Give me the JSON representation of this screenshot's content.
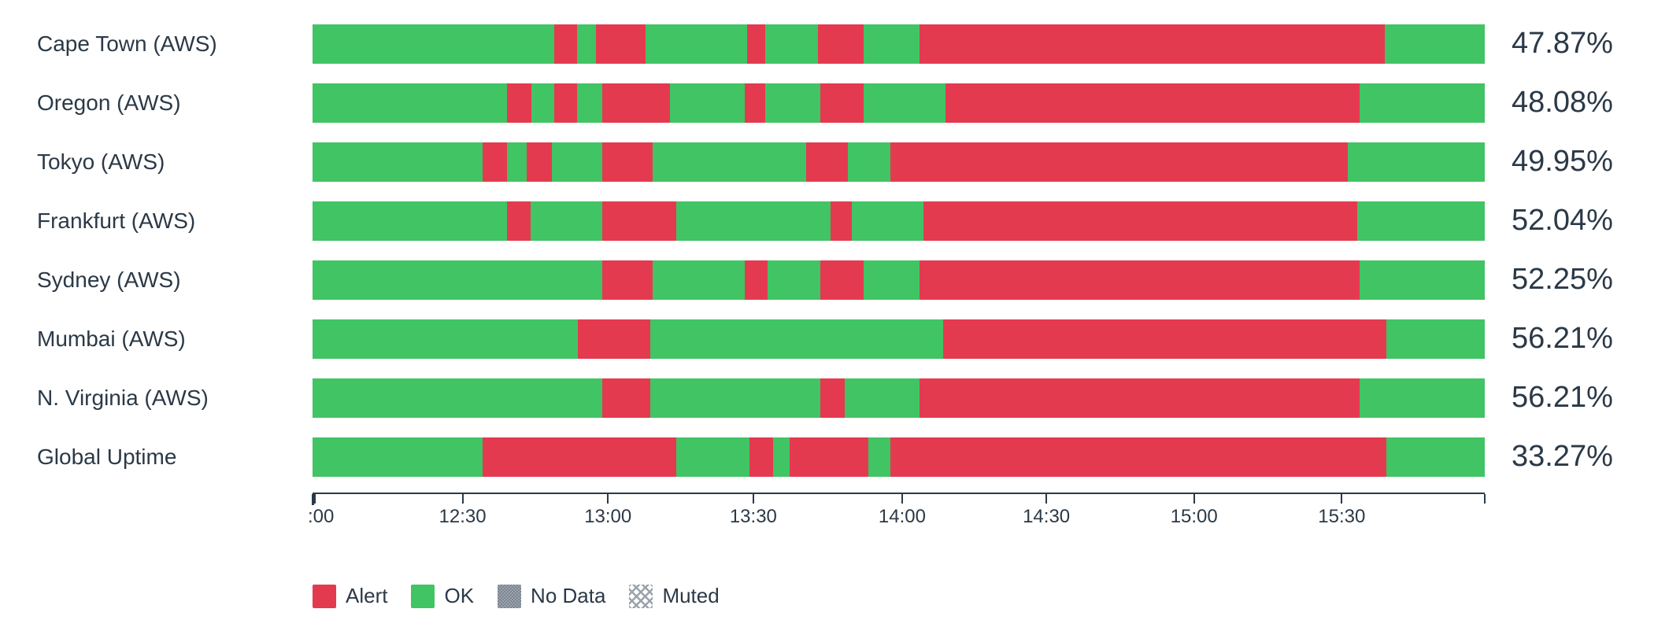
{
  "colors": {
    "alert": "#e43a50",
    "ok": "#41c464",
    "no_data": "#848e99",
    "muted_hatch": "#9aa2ab",
    "text": "#2b3947",
    "axis": "#2b3947",
    "background": "#ffffff"
  },
  "chart_data": {
    "type": "status-timeline (horizontal stacked status bars, one per monitor)",
    "x_axis": {
      "range_start": "12:00",
      "range_end": "16:00",
      "start_tick": true,
      "end_tick": true,
      "grid": false,
      "ticks": [
        {
          "label": ":00",
          "pct": 0.2,
          "align": "left"
        },
        {
          "label": "12:30",
          "pct": 12.8,
          "align": "center"
        },
        {
          "label": "13:00",
          "pct": 25.2,
          "align": "center"
        },
        {
          "label": "13:30",
          "pct": 37.6,
          "align": "center"
        },
        {
          "label": "14:00",
          "pct": 50.3,
          "align": "center"
        },
        {
          "label": "14:30",
          "pct": 62.6,
          "align": "center"
        },
        {
          "label": "15:00",
          "pct": 75.2,
          "align": "center"
        },
        {
          "label": "15:30",
          "pct": 87.8,
          "align": "center"
        }
      ]
    },
    "rows": [
      {
        "label": "Cape Town (AWS)",
        "uptime": "47.87%",
        "segments": [
          {
            "status": "ok",
            "pct": 20.6
          },
          {
            "status": "alert",
            "pct": 2.0
          },
          {
            "status": "ok",
            "pct": 1.6
          },
          {
            "status": "alert",
            "pct": 4.2
          },
          {
            "status": "ok",
            "pct": 8.7
          },
          {
            "status": "alert",
            "pct": 1.5
          },
          {
            "status": "ok",
            "pct": 4.5
          },
          {
            "status": "alert",
            "pct": 3.9
          },
          {
            "status": "ok",
            "pct": 4.8
          },
          {
            "status": "alert",
            "pct": 39.7
          },
          {
            "status": "ok",
            "pct": 8.5
          }
        ]
      },
      {
        "label": "Oregon (AWS)",
        "uptime": "48.08%",
        "segments": [
          {
            "status": "ok",
            "pct": 16.6
          },
          {
            "status": "alert",
            "pct": 2.1
          },
          {
            "status": "ok",
            "pct": 1.9
          },
          {
            "status": "alert",
            "pct": 2.0
          },
          {
            "status": "ok",
            "pct": 2.1
          },
          {
            "status": "alert",
            "pct": 5.8
          },
          {
            "status": "ok",
            "pct": 6.4
          },
          {
            "status": "alert",
            "pct": 1.7
          },
          {
            "status": "ok",
            "pct": 4.7
          },
          {
            "status": "alert",
            "pct": 3.7
          },
          {
            "status": "ok",
            "pct": 7.0
          },
          {
            "status": "alert",
            "pct": 35.3
          },
          {
            "status": "ok",
            "pct": 10.7
          }
        ]
      },
      {
        "label": "Tokyo (AWS)",
        "uptime": "49.95%",
        "segments": [
          {
            "status": "ok",
            "pct": 14.5
          },
          {
            "status": "alert",
            "pct": 2.1
          },
          {
            "status": "ok",
            "pct": 1.7
          },
          {
            "status": "alert",
            "pct": 2.1
          },
          {
            "status": "ok",
            "pct": 4.3
          },
          {
            "status": "alert",
            "pct": 4.3
          },
          {
            "status": "ok",
            "pct": 13.1
          },
          {
            "status": "alert",
            "pct": 3.6
          },
          {
            "status": "ok",
            "pct": 3.6
          },
          {
            "status": "alert",
            "pct": 39.0
          },
          {
            "status": "ok",
            "pct": 11.7
          }
        ]
      },
      {
        "label": "Frankfurt (AWS)",
        "uptime": "52.04%",
        "segments": [
          {
            "status": "ok",
            "pct": 16.6
          },
          {
            "status": "alert",
            "pct": 2.0
          },
          {
            "status": "ok",
            "pct": 6.1
          },
          {
            "status": "alert",
            "pct": 6.3
          },
          {
            "status": "ok",
            "pct": 13.2
          },
          {
            "status": "alert",
            "pct": 1.8
          },
          {
            "status": "ok",
            "pct": 6.1
          },
          {
            "status": "alert",
            "pct": 37.0
          },
          {
            "status": "ok",
            "pct": 10.9
          }
        ]
      },
      {
        "label": "Sydney (AWS)",
        "uptime": "52.25%",
        "segments": [
          {
            "status": "ok",
            "pct": 24.7
          },
          {
            "status": "alert",
            "pct": 4.3
          },
          {
            "status": "ok",
            "pct": 7.9
          },
          {
            "status": "alert",
            "pct": 1.9
          },
          {
            "status": "ok",
            "pct": 4.5
          },
          {
            "status": "alert",
            "pct": 3.7
          },
          {
            "status": "ok",
            "pct": 4.8
          },
          {
            "status": "alert",
            "pct": 37.5
          },
          {
            "status": "ok",
            "pct": 10.7
          }
        ]
      },
      {
        "label": "Mumbai (AWS)",
        "uptime": "56.21%",
        "segments": [
          {
            "status": "ok",
            "pct": 22.6
          },
          {
            "status": "alert",
            "pct": 6.2
          },
          {
            "status": "ok",
            "pct": 25.0
          },
          {
            "status": "alert",
            "pct": 37.8
          },
          {
            "status": "ok",
            "pct": 8.4
          }
        ]
      },
      {
        "label": "N. Virginia (AWS)",
        "uptime": "56.21%",
        "segments": [
          {
            "status": "ok",
            "pct": 24.7
          },
          {
            "status": "alert",
            "pct": 4.1
          },
          {
            "status": "ok",
            "pct": 14.5
          },
          {
            "status": "alert",
            "pct": 2.1
          },
          {
            "status": "ok",
            "pct": 6.4
          },
          {
            "status": "alert",
            "pct": 37.5
          },
          {
            "status": "ok",
            "pct": 10.7
          }
        ]
      },
      {
        "label": "Global Uptime",
        "uptime": "33.27%",
        "segments": [
          {
            "status": "ok",
            "pct": 14.5
          },
          {
            "status": "alert",
            "pct": 16.5
          },
          {
            "status": "ok",
            "pct": 6.3
          },
          {
            "status": "alert",
            "pct": 2.0
          },
          {
            "status": "ok",
            "pct": 1.4
          },
          {
            "status": "alert",
            "pct": 6.7
          },
          {
            "status": "ok",
            "pct": 1.9
          },
          {
            "status": "alert",
            "pct": 42.3
          },
          {
            "status": "ok",
            "pct": 8.4
          }
        ]
      }
    ],
    "legend": [
      {
        "label": "Alert",
        "swatch": "alert"
      },
      {
        "label": "OK",
        "swatch": "ok"
      },
      {
        "label": "No Data",
        "swatch": "no-data"
      },
      {
        "label": "Muted",
        "swatch": "muted"
      }
    ]
  }
}
